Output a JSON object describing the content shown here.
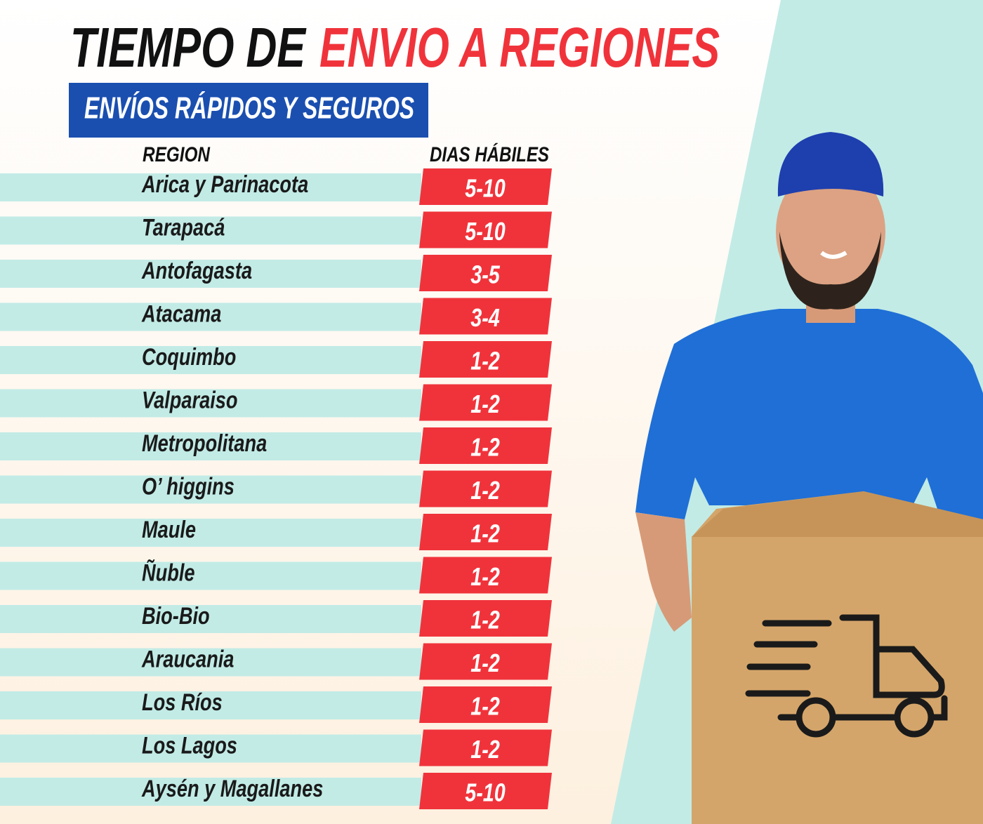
{
  "header": {
    "title_part1": "TIEMPO DE",
    "title_part2": "ENVIO A REGIONES",
    "subtitle": "ENVÍOS RÁPIDOS Y SEGUROS"
  },
  "table": {
    "columns": [
      "REGION",
      "DIAS HÁBILES"
    ],
    "rows": [
      [
        "Arica y Parinacota",
        "5-10"
      ],
      [
        "Tarapacá",
        "5-10"
      ],
      [
        "Antofagasta",
        "3-5"
      ],
      [
        "Atacama",
        "3-4"
      ],
      [
        "Coquimbo",
        "1-2"
      ],
      [
        "Valparaiso",
        "1-2"
      ],
      [
        "Metropolitana",
        "1-2"
      ],
      [
        "O’ higgins",
        "1-2"
      ],
      [
        "Maule",
        "1-2"
      ],
      [
        "Ñuble",
        "1-2"
      ],
      [
        "Bio-Bio",
        "1-2"
      ],
      [
        "Araucania",
        "1-2"
      ],
      [
        "Los Ríos",
        "1-2"
      ],
      [
        "Los Lagos",
        "1-2"
      ],
      [
        "Aysén y Magallanes",
        "5-10"
      ]
    ]
  }
}
